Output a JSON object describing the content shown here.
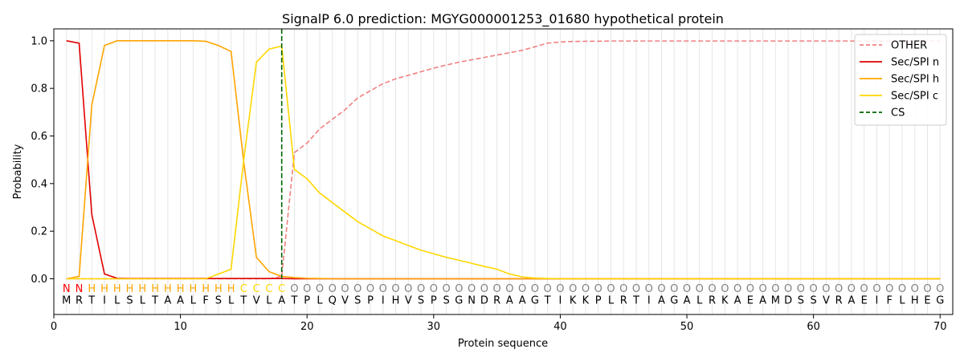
{
  "chart_data": {
    "type": "line",
    "title": "SignalP 6.0 prediction: MGYG000001253_01680 hypothetical protein",
    "xlabel": "Protein sequence",
    "ylabel": "Probability",
    "xlim": [
      0,
      71
    ],
    "ylim": [
      -0.15,
      1.05
    ],
    "x_ticks": [
      0,
      10,
      20,
      30,
      40,
      50,
      60,
      70
    ],
    "y_ticks": [
      0.0,
      0.2,
      0.4,
      0.6,
      0.8,
      1.0
    ],
    "x_tick_labels": [
      "0",
      "10",
      "20",
      "30",
      "40",
      "50",
      "60",
      "70"
    ],
    "y_tick_labels": [
      "0.0",
      "0.2",
      "0.4",
      "0.6",
      "0.8",
      "1.0"
    ],
    "grid": "vertical lines at each residue position",
    "legend_position": "top-right",
    "sequence": [
      "M",
      "R",
      "T",
      "I",
      "L",
      "S",
      "L",
      "T",
      "A",
      "A",
      "L",
      "F",
      "S",
      "L",
      "T",
      "V",
      "L",
      "A",
      "T",
      "P",
      "L",
      "Q",
      "V",
      "S",
      "P",
      "I",
      "H",
      "V",
      "S",
      "P",
      "S",
      "G",
      "N",
      "D",
      "R",
      "A",
      "A",
      "G",
      "T",
      "I",
      "K",
      "K",
      "P",
      "L",
      "R",
      "T",
      "I",
      "A",
      "G",
      "A",
      "L",
      "R",
      "K",
      "A",
      "E",
      "A",
      "M",
      "D",
      "S",
      "S",
      "V",
      "R",
      "A",
      "E",
      "I",
      "F",
      "L",
      "H",
      "E",
      "G"
    ],
    "labels": [
      "N",
      "N",
      "H",
      "H",
      "H",
      "H",
      "H",
      "H",
      "H",
      "H",
      "H",
      "H",
      "H",
      "H",
      "C",
      "C",
      "C",
      "C",
      "O",
      "O",
      "O",
      "O",
      "O",
      "O",
      "O",
      "O",
      "O",
      "O",
      "O",
      "O",
      "O",
      "O",
      "O",
      "O",
      "O",
      "O",
      "O",
      "O",
      "O",
      "O",
      "O",
      "O",
      "O",
      "O",
      "O",
      "O",
      "O",
      "O",
      "O",
      "O",
      "O",
      "O",
      "O",
      "O",
      "O",
      "O",
      "O",
      "O",
      "O",
      "O",
      "O",
      "O",
      "O",
      "O",
      "O",
      "O",
      "O",
      "O",
      "O",
      "O"
    ],
    "label_colors": {
      "N": "#ff0000",
      "H": "#ffa500",
      "C": "#ffd700",
      "O": "#808080"
    },
    "cleavage_site": 18,
    "series": [
      {
        "name": "OTHER",
        "color": "#f08080",
        "dash": "dashed",
        "values": [
          0.0,
          0.0,
          0.0,
          0.0,
          0.0,
          0.0,
          0.0,
          0.0,
          0.0,
          0.0,
          0.0,
          0.0,
          0.0,
          0.0,
          0.0,
          0.0,
          0.0,
          0.01,
          0.53,
          0.57,
          0.63,
          0.67,
          0.71,
          0.76,
          0.79,
          0.82,
          0.84,
          0.855,
          0.87,
          0.885,
          0.898,
          0.91,
          0.92,
          0.93,
          0.94,
          0.95,
          0.96,
          0.975,
          0.99,
          0.995,
          0.997,
          0.998,
          0.998,
          0.999,
          0.999,
          0.999,
          0.999,
          0.999,
          0.999,
          0.999,
          0.999,
          0.999,
          0.999,
          0.999,
          0.999,
          0.999,
          0.999,
          0.999,
          0.999,
          0.999,
          0.999,
          0.999,
          0.999,
          0.999,
          0.999,
          0.999,
          0.999,
          0.999,
          0.999,
          0.999
        ]
      },
      {
        "name": "Sec/SPI n",
        "color": "#e00000",
        "dash": "solid",
        "values": [
          1.0,
          0.99,
          0.27,
          0.02,
          0.002,
          0.001,
          0.001,
          0.001,
          0.001,
          0.001,
          0.001,
          0.001,
          0.001,
          0.001,
          0.001,
          0.001,
          0.001,
          0.001,
          0.0,
          0.0,
          0.0,
          0.0,
          0.0,
          0.0,
          0.0,
          0.0,
          0.0,
          0.0,
          0.0,
          0.0,
          0.0,
          0.0,
          0.0,
          0.0,
          0.0,
          0.0,
          0.0,
          0.0,
          0.0,
          0.0,
          0.0,
          0.0,
          0.0,
          0.0,
          0.0,
          0.0,
          0.0,
          0.0,
          0.0,
          0.0,
          0.0,
          0.0,
          0.0,
          0.0,
          0.0,
          0.0,
          0.0,
          0.0,
          0.0,
          0.0,
          0.0,
          0.0,
          0.0,
          0.0,
          0.0,
          0.0,
          0.0,
          0.0,
          0.0,
          0.0
        ]
      },
      {
        "name": "Sec/SPI h",
        "color": "#ffa500",
        "dash": "solid",
        "values": [
          0.0,
          0.01,
          0.73,
          0.98,
          1.0,
          1.0,
          1.0,
          1.0,
          1.0,
          1.0,
          1.0,
          0.998,
          0.98,
          0.955,
          0.49,
          0.09,
          0.03,
          0.01,
          0.005,
          0.002,
          0.001,
          0.0,
          0.0,
          0.0,
          0.0,
          0.0,
          0.0,
          0.0,
          0.0,
          0.0,
          0.0,
          0.0,
          0.0,
          0.0,
          0.0,
          0.0,
          0.0,
          0.0,
          0.0,
          0.0,
          0.0,
          0.0,
          0.0,
          0.0,
          0.0,
          0.0,
          0.0,
          0.0,
          0.0,
          0.0,
          0.0,
          0.0,
          0.0,
          0.0,
          0.0,
          0.0,
          0.0,
          0.0,
          0.0,
          0.0,
          0.0,
          0.0,
          0.0,
          0.0,
          0.0,
          0.0,
          0.0,
          0.0,
          0.0,
          0.0
        ]
      },
      {
        "name": "Sec/SPI c",
        "color": "#ffd700",
        "dash": "solid",
        "values": [
          0.0,
          0.0,
          0.0,
          0.0,
          0.0,
          0.0,
          0.0,
          0.0,
          0.0,
          0.0,
          0.0,
          0.0,
          0.02,
          0.04,
          0.5,
          0.91,
          0.965,
          0.978,
          0.46,
          0.42,
          0.36,
          0.32,
          0.28,
          0.24,
          0.21,
          0.18,
          0.16,
          0.14,
          0.12,
          0.105,
          0.09,
          0.078,
          0.065,
          0.052,
          0.04,
          0.02,
          0.008,
          0.003,
          0.001,
          0.0,
          0.0,
          0.0,
          0.0,
          0.0,
          0.0,
          0.0,
          0.0,
          0.0,
          0.0,
          0.0,
          0.0,
          0.0,
          0.0,
          0.0,
          0.0,
          0.0,
          0.0,
          0.0,
          0.0,
          0.0,
          0.0,
          0.0,
          0.0,
          0.0,
          0.0,
          0.0,
          0.0,
          0.0,
          0.0,
          0.0
        ]
      }
    ],
    "cs_legend": {
      "name": "CS",
      "color": "#006400",
      "dash": "dashed"
    }
  }
}
